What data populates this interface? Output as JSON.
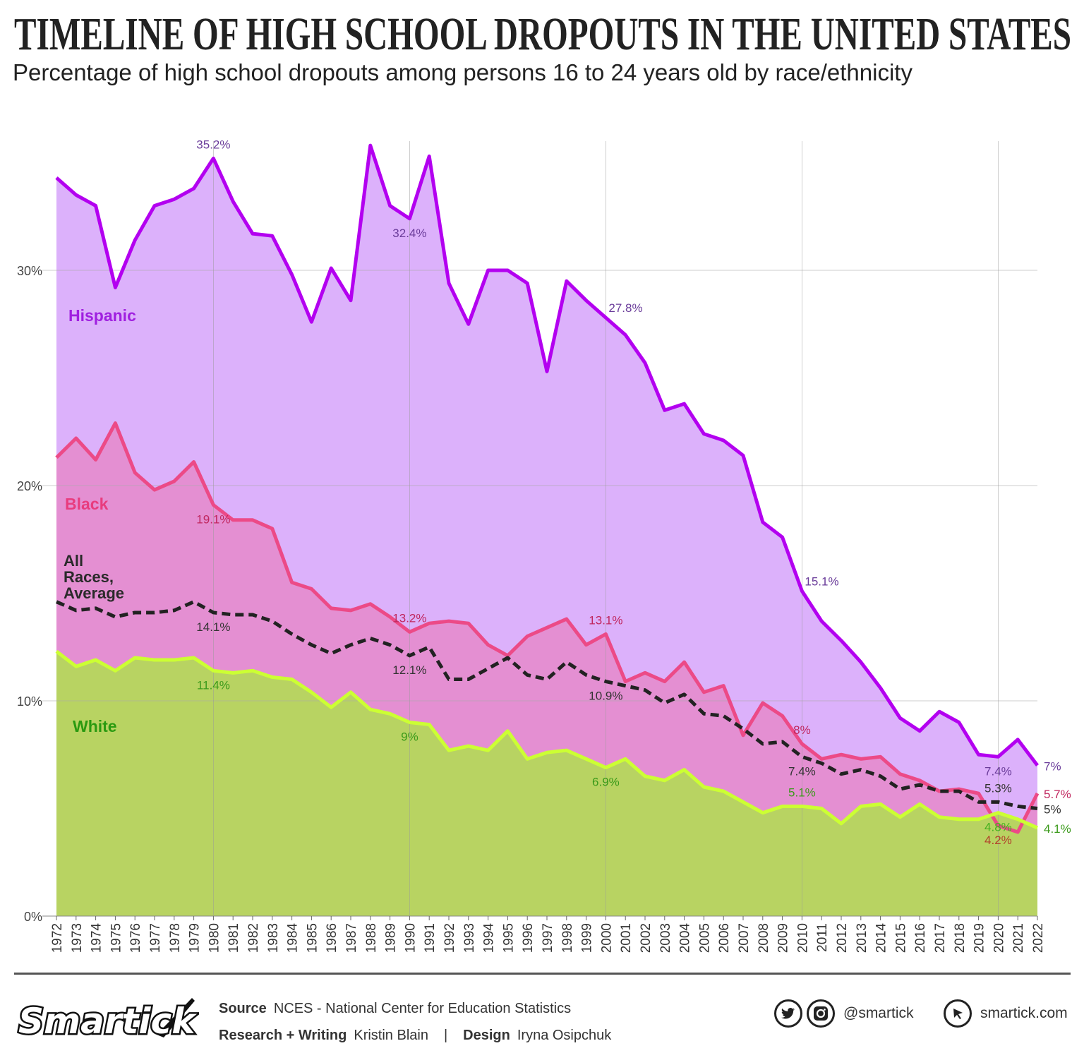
{
  "title": "TIMELINE OF HIGH SCHOOL DROPOUTS IN THE UNITED STATES",
  "subtitle": "Percentage of high school dropouts among persons 16 to 24 years old by race/ethnicity",
  "chart_data": {
    "type": "area",
    "title": "TIMELINE OF HIGH SCHOOL DROPOUTS IN THE UNITED STATES",
    "subtitle": "Percentage of high school dropouts among persons 16 to 24 years old by race/ethnicity",
    "x": [
      1972,
      1973,
      1974,
      1975,
      1976,
      1977,
      1978,
      1979,
      1980,
      1981,
      1982,
      1983,
      1984,
      1985,
      1986,
      1987,
      1988,
      1989,
      1990,
      1991,
      1992,
      1993,
      1994,
      1995,
      1996,
      1997,
      1998,
      1999,
      2000,
      2001,
      2002,
      2003,
      2004,
      2005,
      2006,
      2007,
      2008,
      2009,
      2010,
      2011,
      2012,
      2013,
      2014,
      2015,
      2016,
      2017,
      2018,
      2019,
      2020,
      2021,
      2022
    ],
    "ylim": [
      0,
      36
    ],
    "yticks": [
      0,
      10,
      20,
      30
    ],
    "ytick_labels": [
      "0%",
      "10%",
      "20%",
      "30%"
    ],
    "grid": true,
    "series": [
      {
        "name": "Hispanic",
        "color": "#b300f0",
        "fill": "#dcb1fb",
        "style": "solid",
        "values": [
          34.3,
          33.5,
          33.0,
          29.2,
          31.4,
          33.0,
          33.3,
          33.8,
          35.2,
          33.2,
          31.7,
          31.6,
          29.8,
          27.6,
          30.1,
          28.6,
          35.8,
          33.0,
          32.4,
          35.3,
          29.4,
          27.5,
          30.0,
          30.0,
          29.4,
          25.3,
          29.5,
          28.6,
          27.8,
          27.0,
          25.7,
          23.5,
          23.8,
          22.4,
          22.1,
          21.4,
          18.3,
          17.6,
          15.1,
          13.7,
          12.8,
          11.8,
          10.6,
          9.2,
          8.6,
          9.5,
          9.0,
          7.5,
          7.4,
          8.2,
          7.0
        ]
      },
      {
        "name": "Black",
        "color": "#ec4a87",
        "fill": "#e48fd2",
        "style": "solid",
        "values": [
          21.3,
          22.2,
          21.2,
          22.9,
          20.6,
          19.8,
          20.2,
          21.1,
          19.1,
          18.4,
          18.4,
          18.0,
          15.5,
          15.2,
          14.3,
          14.2,
          14.5,
          13.9,
          13.2,
          13.6,
          13.7,
          13.6,
          12.6,
          12.1,
          13.0,
          13.4,
          13.8,
          12.6,
          13.1,
          10.9,
          11.3,
          10.9,
          11.8,
          10.4,
          10.7,
          8.4,
          9.9,
          9.3,
          8.0,
          7.3,
          7.5,
          7.3,
          7.4,
          6.6,
          6.3,
          5.8,
          5.9,
          5.7,
          4.2,
          3.9,
          5.7
        ]
      },
      {
        "name": "All Races, Average",
        "color": "#222222",
        "style": "dashed",
        "values": [
          14.6,
          14.2,
          14.3,
          13.9,
          14.1,
          14.1,
          14.2,
          14.6,
          14.1,
          14.0,
          14.0,
          13.7,
          13.1,
          12.6,
          12.2,
          12.6,
          12.9,
          12.6,
          12.1,
          12.5,
          11.0,
          11.0,
          11.5,
          12.0,
          11.2,
          11.0,
          11.8,
          11.2,
          10.9,
          10.7,
          10.5,
          9.9,
          10.3,
          9.4,
          9.3,
          8.7,
          8.0,
          8.1,
          7.4,
          7.1,
          6.6,
          6.8,
          6.5,
          5.9,
          6.1,
          5.8,
          5.8,
          5.3,
          5.3,
          5.1,
          5.0
        ]
      },
      {
        "name": "White",
        "color": "#ccff33",
        "fill": "#b8d362",
        "style": "solid",
        "values": [
          12.3,
          11.6,
          11.9,
          11.4,
          12.0,
          11.9,
          11.9,
          12.0,
          11.4,
          11.3,
          11.4,
          11.1,
          11.0,
          10.4,
          9.7,
          10.4,
          9.6,
          9.4,
          9.0,
          8.9,
          7.7,
          7.9,
          7.7,
          8.6,
          7.3,
          7.6,
          7.7,
          7.3,
          6.9,
          7.3,
          6.5,
          6.3,
          6.8,
          6.0,
          5.8,
          5.3,
          4.8,
          5.1,
          5.1,
          5.0,
          4.3,
          5.1,
          5.2,
          4.6,
          5.2,
          4.6,
          4.5,
          4.5,
          4.8,
          4.5,
          4.1
        ]
      }
    ],
    "legend": [
      {
        "series": "Hispanic",
        "text": "Hispanic",
        "color": "#a020e0"
      },
      {
        "series": "Black",
        "text": "Black",
        "color": "#e83c7e"
      },
      {
        "series": "All Races, Average",
        "lines": [
          "All",
          "Races,",
          "Average"
        ],
        "color": "#2a2a2a"
      },
      {
        "series": "White",
        "text": "White",
        "color": "#2a9a10"
      }
    ],
    "annotations": [
      {
        "series": "Hispanic",
        "x": 1980,
        "text": "35.2%",
        "color": "#6a3c9a",
        "pos": "above"
      },
      {
        "series": "Hispanic",
        "x": 1990,
        "text": "32.4%",
        "color": "#6a3c9a",
        "pos": "below"
      },
      {
        "series": "Hispanic",
        "x": 2000,
        "text": "27.8%",
        "color": "#6a3c9a",
        "pos": "right"
      },
      {
        "series": "Hispanic",
        "x": 2010,
        "text": "15.1%",
        "color": "#6a3c9a",
        "pos": "right"
      },
      {
        "series": "Hispanic",
        "x": 2020,
        "text": "7.4%",
        "color": "#6a3c9a",
        "pos": "below"
      },
      {
        "series": "Hispanic",
        "x": 2022,
        "text": "7%",
        "color": "#6a3c9a",
        "pos": "end"
      },
      {
        "series": "Black",
        "x": 1980,
        "text": "19.1%",
        "color": "#c0265e",
        "pos": "below"
      },
      {
        "series": "Black",
        "x": 1990,
        "text": "13.2%",
        "color": "#c0265e",
        "pos": "above"
      },
      {
        "series": "Black",
        "x": 2000,
        "text": "13.1%",
        "color": "#c0265e",
        "pos": "above"
      },
      {
        "series": "Black",
        "x": 2010,
        "text": "8%",
        "color": "#c0265e",
        "pos": "above"
      },
      {
        "series": "Black",
        "x": 2020,
        "text": "4.2%",
        "color": "#b2402a",
        "pos": "below"
      },
      {
        "series": "Black",
        "x": 2022,
        "text": "5.7%",
        "color": "#c0265e",
        "pos": "end"
      },
      {
        "series": "All Races, Average",
        "x": 1980,
        "text": "14.1%",
        "color": "#333333",
        "pos": "below"
      },
      {
        "series": "All Races, Average",
        "x": 1990,
        "text": "12.1%",
        "color": "#333333",
        "pos": "below"
      },
      {
        "series": "All Races, Average",
        "x": 2000,
        "text": "10.9%",
        "color": "#333333",
        "pos": "below"
      },
      {
        "series": "All Races, Average",
        "x": 2010,
        "text": "7.4%",
        "color": "#333333",
        "pos": "below"
      },
      {
        "series": "All Races, Average",
        "x": 2020,
        "text": "5.3%",
        "color": "#333333",
        "pos": "above"
      },
      {
        "series": "All Races, Average",
        "x": 2022,
        "text": "5%",
        "color": "#333333",
        "pos": "end"
      },
      {
        "series": "White",
        "x": 1980,
        "text": "11.4%",
        "color": "#3a9a1a",
        "pos": "below"
      },
      {
        "series": "White",
        "x": 1990,
        "text": "9%",
        "color": "#3a9a1a",
        "pos": "below"
      },
      {
        "series": "White",
        "x": 2000,
        "text": "6.9%",
        "color": "#3a9a1a",
        "pos": "below"
      },
      {
        "series": "White",
        "x": 2010,
        "text": "5.1%",
        "color": "#3a9a1a",
        "pos": "above"
      },
      {
        "series": "White",
        "x": 2020,
        "text": "4.8%",
        "color": "#44b020",
        "pos": "below"
      },
      {
        "series": "White",
        "x": 2022,
        "text": "4.1%",
        "color": "#3a9a1a",
        "pos": "end"
      }
    ]
  },
  "footer": {
    "logo": "Smartick",
    "source_label": "Source",
    "source_value": "NCES - National Center for Education Statistics",
    "research_label": "Research + Writing",
    "research_value": "Kristin Blain",
    "divider": "|",
    "design_label": "Design",
    "design_value": "Iryna Osipchuk",
    "social_handle": "@smartick",
    "website": "smartick.com",
    "icons": [
      "twitter-icon",
      "instagram-icon",
      "cursor-icon"
    ]
  }
}
